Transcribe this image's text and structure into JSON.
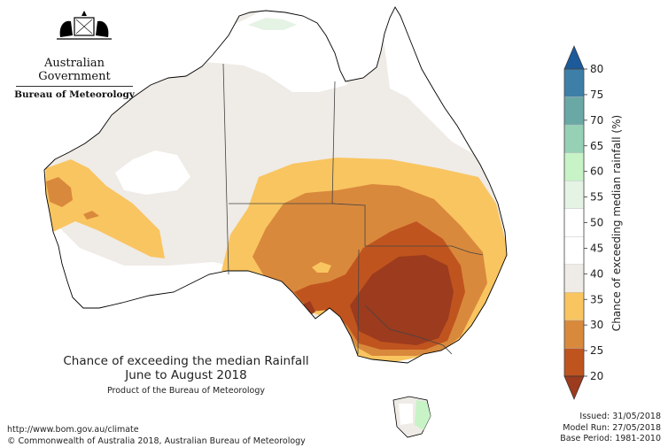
{
  "header": {
    "government": "Australian Government",
    "bureau": "Bureau of Meteorology"
  },
  "title": {
    "line1": "Chance of exceeding the median Rainfall",
    "line2": "June to August 2018",
    "product": "Product of the Bureau of Meteorology"
  },
  "footer": {
    "url": "http://www.bom.gov.au/climate",
    "copyright": "© Commonwealth of Australia 2018, Australian Bureau of Meteorology",
    "issued": "Issued: 31/05/2018",
    "model_run": "Model Run: 27/05/2018",
    "base_period": "Base Period: 1981-2010"
  },
  "legend": {
    "title": "Chance of exceeding median rainfall (%)",
    "ticks": [
      "20",
      "25",
      "30",
      "35",
      "40",
      "45",
      "50",
      "55",
      "60",
      "65",
      "70",
      "75",
      "80"
    ],
    "colors": [
      "#9c3b1e",
      "#c0541f",
      "#d9893c",
      "#f9c560",
      "#efebe6",
      "#ffffff",
      "#ffffff",
      "#e5f3e5",
      "#c7f3c7",
      "#96d1b5",
      "#6aa8a6",
      "#3e7fa8",
      "#1d5a9a"
    ]
  },
  "map_colors": {
    "land_base": "#efebe6",
    "white": "#ffffff",
    "c35_40": "#f9c560",
    "c30_35": "#d9893c",
    "c25_30": "#c0541f",
    "c20_25": "#9c3b1e",
    "green": "#c7f3c7",
    "light_green": "#e5f3e5"
  }
}
